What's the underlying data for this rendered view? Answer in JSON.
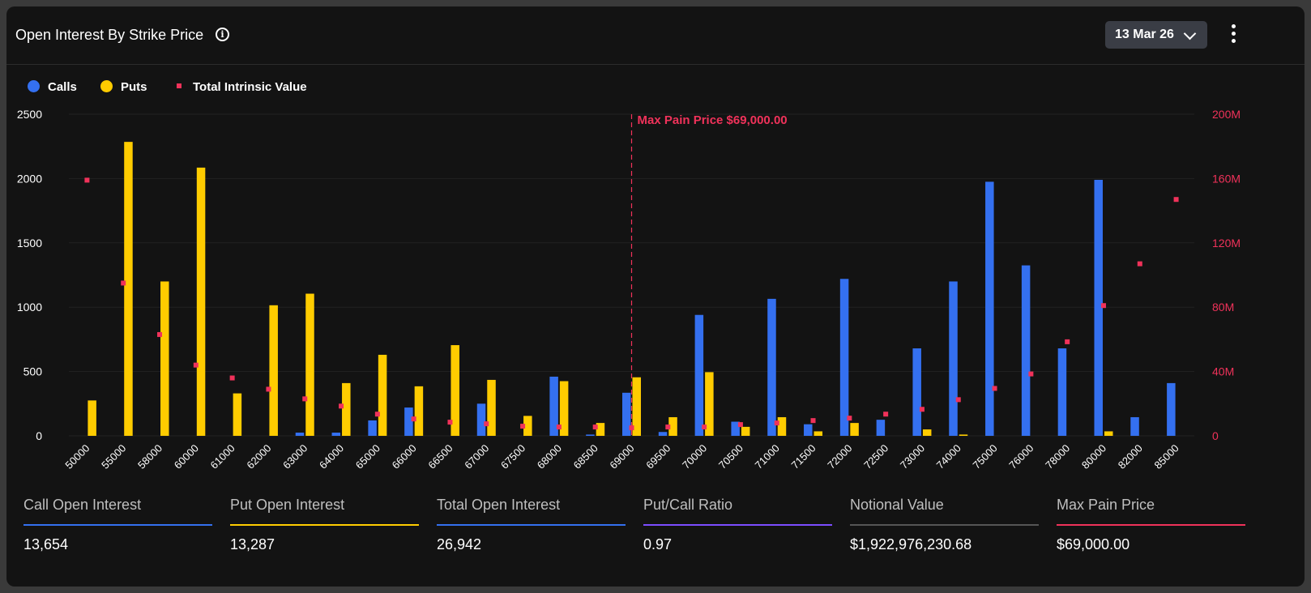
{
  "header": {
    "title": "Open Interest By Strike Price",
    "date_selected": "13 Mar 26"
  },
  "icons": {
    "info": "info-icon",
    "dropdown": "chevron-down-icon",
    "menu": "more-vertical-icon"
  },
  "colors": {
    "calls": "#3470f0",
    "puts": "#ffcc00",
    "intrinsic": "#f0325a",
    "max_pain": "#f0325a",
    "ratio": "#7c4dff",
    "notional": "#555555"
  },
  "legend": [
    {
      "label": "Calls",
      "color": "#3470f0"
    },
    {
      "label": "Puts",
      "color": "#ffcc00"
    },
    {
      "label": "Total Intrinsic Value",
      "color": "#f0325a"
    }
  ],
  "chart_data": {
    "type": "bar",
    "categories": [
      "50000",
      "55000",
      "58000",
      "60000",
      "61000",
      "62000",
      "63000",
      "64000",
      "65000",
      "66000",
      "66500",
      "67000",
      "67500",
      "68000",
      "68500",
      "69000",
      "69500",
      "70000",
      "70500",
      "71000",
      "71500",
      "72000",
      "72500",
      "73000",
      "74000",
      "75000",
      "76000",
      "78000",
      "80000",
      "82000",
      "85000"
    ],
    "series": [
      {
        "name": "Calls",
        "type": "bar",
        "axis": "left",
        "values": [
          0,
          0,
          0,
          0,
          0,
          0,
          25,
          25,
          120,
          220,
          0,
          250,
          0,
          460,
          10,
          335,
          30,
          940,
          110,
          1065,
          90,
          1220,
          125,
          680,
          1200,
          1975,
          1325,
          680,
          1990,
          145,
          410
        ]
      },
      {
        "name": "Puts",
        "type": "bar",
        "axis": "left",
        "values": [
          275,
          2285,
          1200,
          2085,
          330,
          1015,
          1105,
          410,
          630,
          385,
          705,
          435,
          155,
          425,
          100,
          455,
          145,
          495,
          70,
          145,
          35,
          100,
          0,
          50,
          10,
          0,
          0,
          0,
          35,
          0,
          0
        ]
      },
      {
        "name": "Total Intrinsic Value",
        "type": "scatter",
        "axis": "right",
        "values": [
          159000000,
          95000000,
          63000000,
          44000000,
          36000000,
          29000000,
          23000000,
          18500000,
          13500000,
          10500000,
          8500000,
          7500000,
          6000000,
          5500000,
          5500000,
          5000000,
          5500000,
          5500000,
          7000000,
          8000000,
          9500000,
          11000000,
          13500000,
          16500000,
          22500000,
          29500000,
          38500000,
          58500000,
          81000000,
          107000000,
          147000000
        ]
      }
    ],
    "ylim": [
      0,
      2500
    ],
    "y_ticks": [
      "0",
      "500",
      "1000",
      "1500",
      "2000",
      "2500"
    ],
    "y2lim": [
      0,
      200000000
    ],
    "y2_ticks": [
      "0",
      "40M",
      "80M",
      "120M",
      "160M",
      "200M"
    ],
    "annotation": {
      "label": "Max Pain Price $69,000.00",
      "x": "69000"
    },
    "grid": true,
    "legend_position": "top-left"
  },
  "stats": [
    {
      "label": "Call Open Interest",
      "value": "13,654",
      "color": "#3470f0"
    },
    {
      "label": "Put Open Interest",
      "value": "13,287",
      "color": "#ffcc00"
    },
    {
      "label": "Total Open Interest",
      "value": "26,942",
      "color": "#3470f0"
    },
    {
      "label": "Put/Call Ratio",
      "value": "0.97",
      "color": "#7c4dff"
    },
    {
      "label": "Notional Value",
      "value": "$1,922,976,230.68",
      "color": "#555555"
    },
    {
      "label": "Max Pain Price",
      "value": "$69,000.00",
      "color": "#f0325a"
    }
  ]
}
